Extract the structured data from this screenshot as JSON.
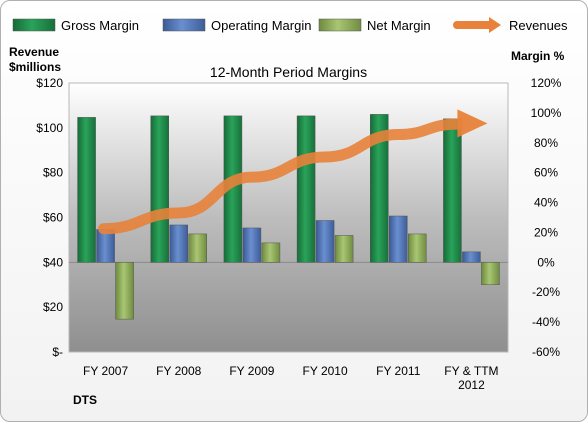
{
  "chart_data": {
    "type": "bar",
    "title": "12-Month Period Margins",
    "categories": [
      "FY 2007",
      "FY 2008",
      "FY 2009",
      "FY 2010",
      "FY 2011",
      "FY & TTM 2012"
    ],
    "category_lines": [
      [
        "FY 2007"
      ],
      [
        "FY 2008"
      ],
      [
        "FY 2009"
      ],
      [
        "FY 2010"
      ],
      [
        "FY 2011"
      ],
      [
        "FY & TTM",
        "2012"
      ]
    ],
    "y_left": {
      "label_lines": [
        "Revenue",
        "$millions"
      ],
      "ticks": [
        "$-",
        "$20",
        "$40",
        "$60",
        "$80",
        "$100",
        "$120"
      ],
      "ylim": [
        0,
        120
      ]
    },
    "y_right": {
      "label": "Margin %",
      "ticks": [
        "-60%",
        "-40%",
        "-20%",
        "0%",
        "20%",
        "40%",
        "60%",
        "80%",
        "100%",
        "120%"
      ],
      "ylim": [
        -60,
        120
      ]
    },
    "series": [
      {
        "name": "Gross Margin",
        "axis": "right",
        "color": "#1e8a4a",
        "values": [
          97,
          98,
          98,
          98,
          99,
          96
        ]
      },
      {
        "name": "Operating Margin",
        "axis": "right",
        "color": "#4f74b8",
        "values": [
          22,
          25,
          23,
          28,
          31,
          7
        ]
      },
      {
        "name": "Net Margin",
        "axis": "right",
        "color": "#93b060",
        "values": [
          -38,
          19,
          13,
          18,
          19,
          -15
        ]
      },
      {
        "name": "Revenues",
        "axis": "left",
        "type": "line",
        "color": "#e8823a",
        "values": [
          55,
          62,
          78,
          87,
          97,
          102
        ]
      }
    ],
    "legend_position": "top",
    "source_label": "DTS"
  }
}
